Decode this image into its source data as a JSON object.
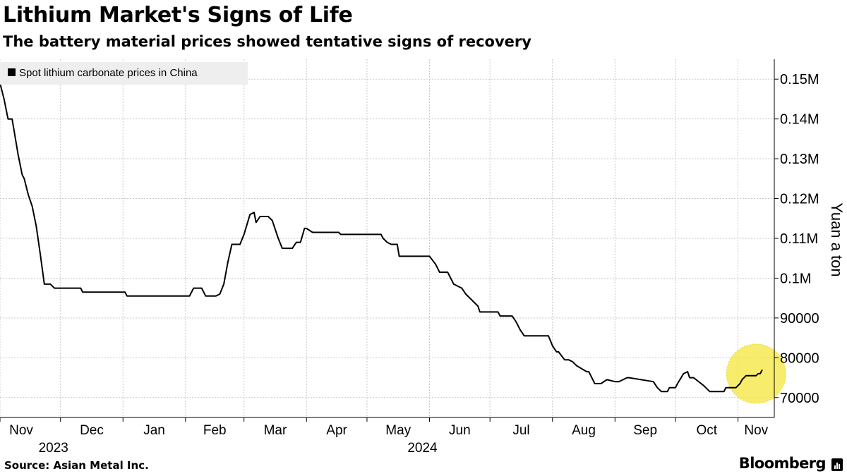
{
  "header": {
    "title": "Lithium Market's Signs of Life",
    "subtitle": "The battery material prices showed tentative signs of recovery"
  },
  "footer": {
    "source": "Source: Asian Metal Inc.",
    "brand": "Bloomberg"
  },
  "colors": {
    "line": "#000000",
    "grid": "#c8c8c8",
    "highlight": "#f5e63c",
    "legend_bg": "#eeeeee"
  },
  "chart_data": {
    "type": "line",
    "title": "Lithium Market's Signs of Life",
    "subtitle": "The battery material prices showed tentative signs of recovery",
    "ylabel": "Yuan a ton",
    "xlabel": "",
    "ylim": [
      65000,
      155000
    ],
    "xlim": [
      "2023-11-01",
      "2024-11-19"
    ],
    "grid": true,
    "legend": {
      "placement": "top-left",
      "entries": [
        "Spot lithium carbonate prices in China"
      ]
    },
    "y_ticks": [
      {
        "value": 70000,
        "label": "70000"
      },
      {
        "value": 80000,
        "label": "80000"
      },
      {
        "value": 90000,
        "label": "90000"
      },
      {
        "value": 100000,
        "label": "0.1M"
      },
      {
        "value": 110000,
        "label": "0.11M"
      },
      {
        "value": 120000,
        "label": "0.12M"
      },
      {
        "value": 130000,
        "label": "0.13M"
      },
      {
        "value": 140000,
        "label": "0.14M"
      },
      {
        "value": 150000,
        "label": "0.15M"
      }
    ],
    "x_ticks": [
      {
        "date": "2023-11-01",
        "label": "Nov"
      },
      {
        "date": "2023-12-01",
        "label": "Dec"
      },
      {
        "date": "2024-01-01",
        "label": "Jan"
      },
      {
        "date": "2024-02-01",
        "label": "Feb"
      },
      {
        "date": "2024-03-01",
        "label": "Mar"
      },
      {
        "date": "2024-04-01",
        "label": "Apr"
      },
      {
        "date": "2024-05-01",
        "label": "May"
      },
      {
        "date": "2024-06-01",
        "label": "Jun"
      },
      {
        "date": "2024-07-01",
        "label": "Jul"
      },
      {
        "date": "2024-08-01",
        "label": "Aug"
      },
      {
        "date": "2024-09-01",
        "label": "Sep"
      },
      {
        "date": "2024-10-01",
        "label": "Oct"
      },
      {
        "date": "2024-11-01",
        "label": "Nov"
      }
    ],
    "year_labels": [
      {
        "date": "2023-12-01",
        "label": "2023"
      },
      {
        "date": "2024-06-01",
        "label": "2024"
      }
    ],
    "annotations": [
      {
        "type": "highlight-circle",
        "center": {
          "x": "2024-11-10",
          "y": 76000
        }
      }
    ],
    "series": [
      {
        "name": "Spot lithium carbonate prices in China",
        "x": [
          "2023-11-01",
          "2023-11-03",
          "2023-11-05",
          "2023-11-07",
          "2023-11-08",
          "2023-11-10",
          "2023-11-12",
          "2023-11-13",
          "2023-11-15",
          "2023-11-17",
          "2023-11-19",
          "2023-11-21",
          "2023-11-23",
          "2023-11-25",
          "2023-11-26",
          "2023-11-28",
          "2023-12-02",
          "2023-12-04",
          "2023-12-11",
          "2023-12-12",
          "2023-12-19",
          "2023-12-20",
          "2024-01-02",
          "2024-01-03",
          "2024-01-15",
          "2024-02-03",
          "2024-02-05",
          "2024-02-09",
          "2024-02-11",
          "2024-02-16",
          "2024-02-18",
          "2024-02-20",
          "2024-02-22",
          "2024-02-24",
          "2024-02-26",
          "2024-02-28",
          "2024-03-01",
          "2024-03-04",
          "2024-03-06",
          "2024-03-07",
          "2024-03-09",
          "2024-03-10",
          "2024-03-13",
          "2024-03-15",
          "2024-03-18",
          "2024-03-20",
          "2024-03-25",
          "2024-03-27",
          "2024-03-29",
          "2024-03-31",
          "2024-04-01",
          "2024-04-04",
          "2024-04-07",
          "2024-04-09",
          "2024-04-17",
          "2024-04-18",
          "2024-05-08",
          "2024-05-09",
          "2024-05-11",
          "2024-05-13",
          "2024-05-16",
          "2024-05-17",
          "2024-06-01",
          "2024-06-04",
          "2024-06-06",
          "2024-06-10",
          "2024-06-13",
          "2024-06-17",
          "2024-06-19",
          "2024-06-22",
          "2024-06-25",
          "2024-06-26",
          "2024-07-05",
          "2024-07-06",
          "2024-07-12",
          "2024-07-14",
          "2024-07-16",
          "2024-07-18",
          "2024-07-30",
          "2024-08-01",
          "2024-08-03",
          "2024-08-04",
          "2024-08-07",
          "2024-08-09",
          "2024-08-11",
          "2024-08-13",
          "2024-08-18",
          "2024-08-19",
          "2024-08-21",
          "2024-08-22",
          "2024-08-25",
          "2024-08-28",
          "2024-09-01",
          "2024-09-03",
          "2024-09-05",
          "2024-09-07",
          "2024-09-08",
          "2024-09-20",
          "2024-09-22",
          "2024-09-24",
          "2024-09-27",
          "2024-09-28",
          "2024-09-29",
          "2024-10-01",
          "2024-10-02",
          "2024-10-05",
          "2024-10-07",
          "2024-10-08",
          "2024-10-10",
          "2024-10-15",
          "2024-10-18",
          "2024-10-19",
          "2024-10-25",
          "2024-10-26",
          "2024-10-31",
          "2024-11-02",
          "2024-11-03",
          "2024-11-05",
          "2024-11-09",
          "2024-11-10",
          "2024-11-11",
          "2024-11-12",
          "2024-11-13"
        ],
        "values": [
          149000,
          145000,
          140000,
          140000,
          137000,
          131000,
          126000,
          125000,
          121000,
          118000,
          113000,
          106000,
          98500,
          98500,
          98500,
          97500,
          97500,
          97500,
          97500,
          96500,
          96500,
          96500,
          96500,
          95500,
          95500,
          95500,
          97500,
          97500,
          95500,
          95500,
          96000,
          98500,
          104000,
          108500,
          108500,
          108500,
          111000,
          116000,
          116500,
          114000,
          115500,
          115500,
          115500,
          114500,
          110000,
          107500,
          107500,
          109000,
          109000,
          112500,
          112500,
          111500,
          111500,
          111500,
          111500,
          111000,
          111000,
          110000,
          109000,
          108500,
          108500,
          105500,
          105500,
          103500,
          101500,
          101500,
          98500,
          97500,
          96000,
          94500,
          93000,
          91500,
          91500,
          90500,
          90500,
          89000,
          87000,
          85500,
          85500,
          83000,
          81500,
          81500,
          79500,
          79500,
          79000,
          78000,
          76500,
          76500,
          74500,
          73500,
          73500,
          74500,
          74000,
          74000,
          74500,
          75000,
          75000,
          74000,
          72500,
          71500,
          71500,
          72500,
          72500,
          72500,
          73500,
          76000,
          76500,
          75000,
          75000,
          73000,
          71500,
          71500,
          71500,
          72500,
          72500,
          73500,
          74500,
          75500,
          75500,
          75500,
          76000,
          76000,
          77000
        ]
      }
    ]
  }
}
